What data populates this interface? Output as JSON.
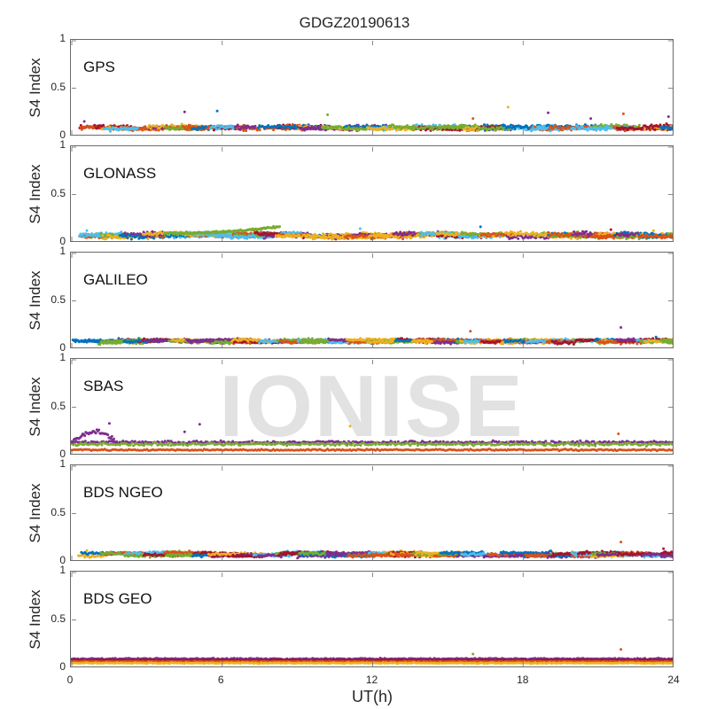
{
  "title": "GDGZ20190613",
  "xlabel": "UT(h)",
  "ylabel": "S4 Index",
  "watermark": "IONISE",
  "x_ticks": [
    "0",
    "6",
    "12",
    "18",
    "24"
  ],
  "y_ticks": [
    "0",
    "0.5",
    "1"
  ],
  "palette": [
    "#0072BD",
    "#D95319",
    "#EDB120",
    "#7E2F8E",
    "#77AC30",
    "#4DBEEE",
    "#A2142F"
  ],
  "chart_data": [
    {
      "type": "scatter",
      "title": "GPS",
      "xlabel": "UT(h)",
      "ylabel": "S4 Index",
      "xlim": [
        0,
        24
      ],
      "ylim": [
        0,
        1
      ],
      "grid": false,
      "series_count": 7,
      "baseline": [
        0.07,
        0.1
      ],
      "noise": 0.02,
      "outliers": [
        [
          0.5,
          0.15,
          3
        ],
        [
          4.5,
          0.25,
          3
        ],
        [
          5.8,
          0.26,
          0
        ],
        [
          10.2,
          0.22,
          4
        ],
        [
          16.0,
          0.18,
          1
        ],
        [
          17.4,
          0.3,
          2
        ],
        [
          19.0,
          0.24,
          3
        ],
        [
          20.7,
          0.18,
          3
        ],
        [
          22.0,
          0.23,
          1
        ],
        [
          23.8,
          0.2,
          3
        ]
      ]
    },
    {
      "type": "scatter",
      "title": "GLONASS",
      "xlabel": "UT(h)",
      "ylabel": "S4 Index",
      "xlim": [
        0,
        24
      ],
      "ylim": [
        0,
        1
      ],
      "grid": false,
      "series_count": 7,
      "baseline": [
        0.05,
        0.09
      ],
      "noise": 0.02,
      "arc": [
        3.7,
        8.3,
        0.09,
        0.16,
        4
      ],
      "outliers": [
        [
          0.6,
          0.12,
          5
        ],
        [
          11.5,
          0.14,
          5
        ],
        [
          16.3,
          0.16,
          0
        ],
        [
          21.5,
          0.13,
          6
        ],
        [
          23.2,
          0.12,
          2
        ]
      ]
    },
    {
      "type": "scatter",
      "title": "GALILEO",
      "xlabel": "UT(h)",
      "ylabel": "S4 Index",
      "xlim": [
        0,
        24
      ],
      "ylim": [
        0,
        1
      ],
      "grid": false,
      "series_count": 7,
      "baseline": [
        0.06,
        0.09
      ],
      "noise": 0.015,
      "outliers": [
        [
          15.9,
          0.18,
          1
        ],
        [
          21.9,
          0.22,
          3
        ],
        [
          23.3,
          0.12,
          0
        ]
      ]
    },
    {
      "type": "scatter",
      "title": "SBAS",
      "xlabel": "UT(h)",
      "ylabel": "S4 Index",
      "xlim": [
        0,
        24
      ],
      "ylim": [
        0,
        1
      ],
      "grid": false,
      "series_count": 3,
      "fixed_series": [
        {
          "color_index": 3,
          "level": 0.13,
          "noise": 0.015
        },
        {
          "color_index": 4,
          "level": 0.11,
          "noise": 0.015
        },
        {
          "color_index": 1,
          "level": 0.05,
          "noise": 0.008
        }
      ],
      "bump": [
        0,
        1.8,
        0.24,
        3
      ],
      "outliers": [
        [
          1.5,
          0.33,
          3
        ],
        [
          5.1,
          0.32,
          3
        ],
        [
          11.1,
          0.3,
          2
        ],
        [
          21.8,
          0.22,
          1
        ],
        [
          4.5,
          0.24,
          3
        ]
      ]
    },
    {
      "type": "scatter",
      "title": "BDS NGEO",
      "xlabel": "UT(h)",
      "ylabel": "S4 Index",
      "xlim": [
        0,
        24
      ],
      "ylim": [
        0,
        1
      ],
      "grid": false,
      "series_count": 7,
      "baseline": [
        0.05,
        0.09
      ],
      "noise": 0.015,
      "outliers": [
        [
          21.9,
          0.2,
          1
        ],
        [
          23.6,
          0.13,
          6
        ],
        [
          0.6,
          0.11,
          2
        ]
      ]
    },
    {
      "type": "scatter",
      "title": "BDS GEO",
      "xlabel": "UT(h)",
      "ylabel": "S4 Index",
      "xlim": [
        0,
        24
      ],
      "ylim": [
        0,
        1
      ],
      "grid": false,
      "series_count": 4,
      "fixed_series": [
        {
          "color_index": 3,
          "level": 0.09,
          "noise": 0.007
        },
        {
          "color_index": 6,
          "level": 0.075,
          "noise": 0.006
        },
        {
          "color_index": 1,
          "level": 0.06,
          "noise": 0.005
        },
        {
          "color_index": 2,
          "level": 0.045,
          "noise": 0.005
        }
      ],
      "outliers": [
        [
          16.0,
          0.14,
          4
        ],
        [
          21.9,
          0.19,
          1
        ]
      ]
    }
  ]
}
